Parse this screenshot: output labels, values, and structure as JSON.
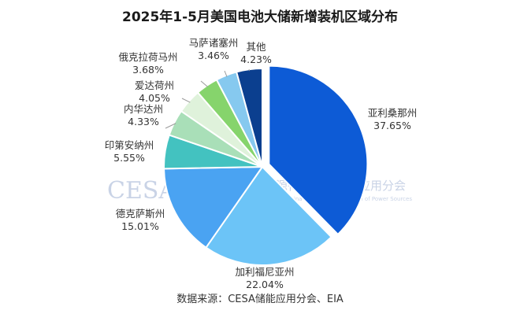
{
  "title": "2025年1-5月美国电池大储新增装机区域分布",
  "source": "数据来源：CESA储能应用分会、EIA",
  "watermark": {
    "logo": "CESA",
    "org_cn": "中国化学与物理电源行业协会储能应用分会",
    "org_en": "Energy Storage Application Branch of China Industrial Association of Power Sources"
  },
  "chart_data": {
    "type": "pie",
    "title": "2025年1-5月美国电池大储新增装机区域分布",
    "slices": [
      {
        "name": "亚利桑那州",
        "value": 37.65,
        "label": "37.65%",
        "color": "#0d5bd6",
        "exploded": true
      },
      {
        "name": "加利福尼亚州",
        "value": 22.04,
        "label": "22.04%",
        "color": "#6cc4f7"
      },
      {
        "name": "德克萨斯州",
        "value": 15.01,
        "label": "15.01%",
        "color": "#4aa3f2"
      },
      {
        "name": "印第安纳州",
        "value": 5.55,
        "label": "5.55%",
        "color": "#43c2c0"
      },
      {
        "name": "内华达州",
        "value": 4.33,
        "label": "4.33%",
        "color": "#a9dfb8"
      },
      {
        "name": "爱达荷州",
        "value": 4.05,
        "label": "4.05%",
        "color": "#dff2db"
      },
      {
        "name": "俄克拉荷马州",
        "value": 3.68,
        "label": "3.68%",
        "color": "#86d46c"
      },
      {
        "name": "马萨诸塞州",
        "value": 3.46,
        "label": "3.46%",
        "color": "#86c9ef"
      },
      {
        "name": "其他",
        "value": 4.23,
        "label": "4.23%",
        "color": "#0b3f8f"
      }
    ]
  }
}
